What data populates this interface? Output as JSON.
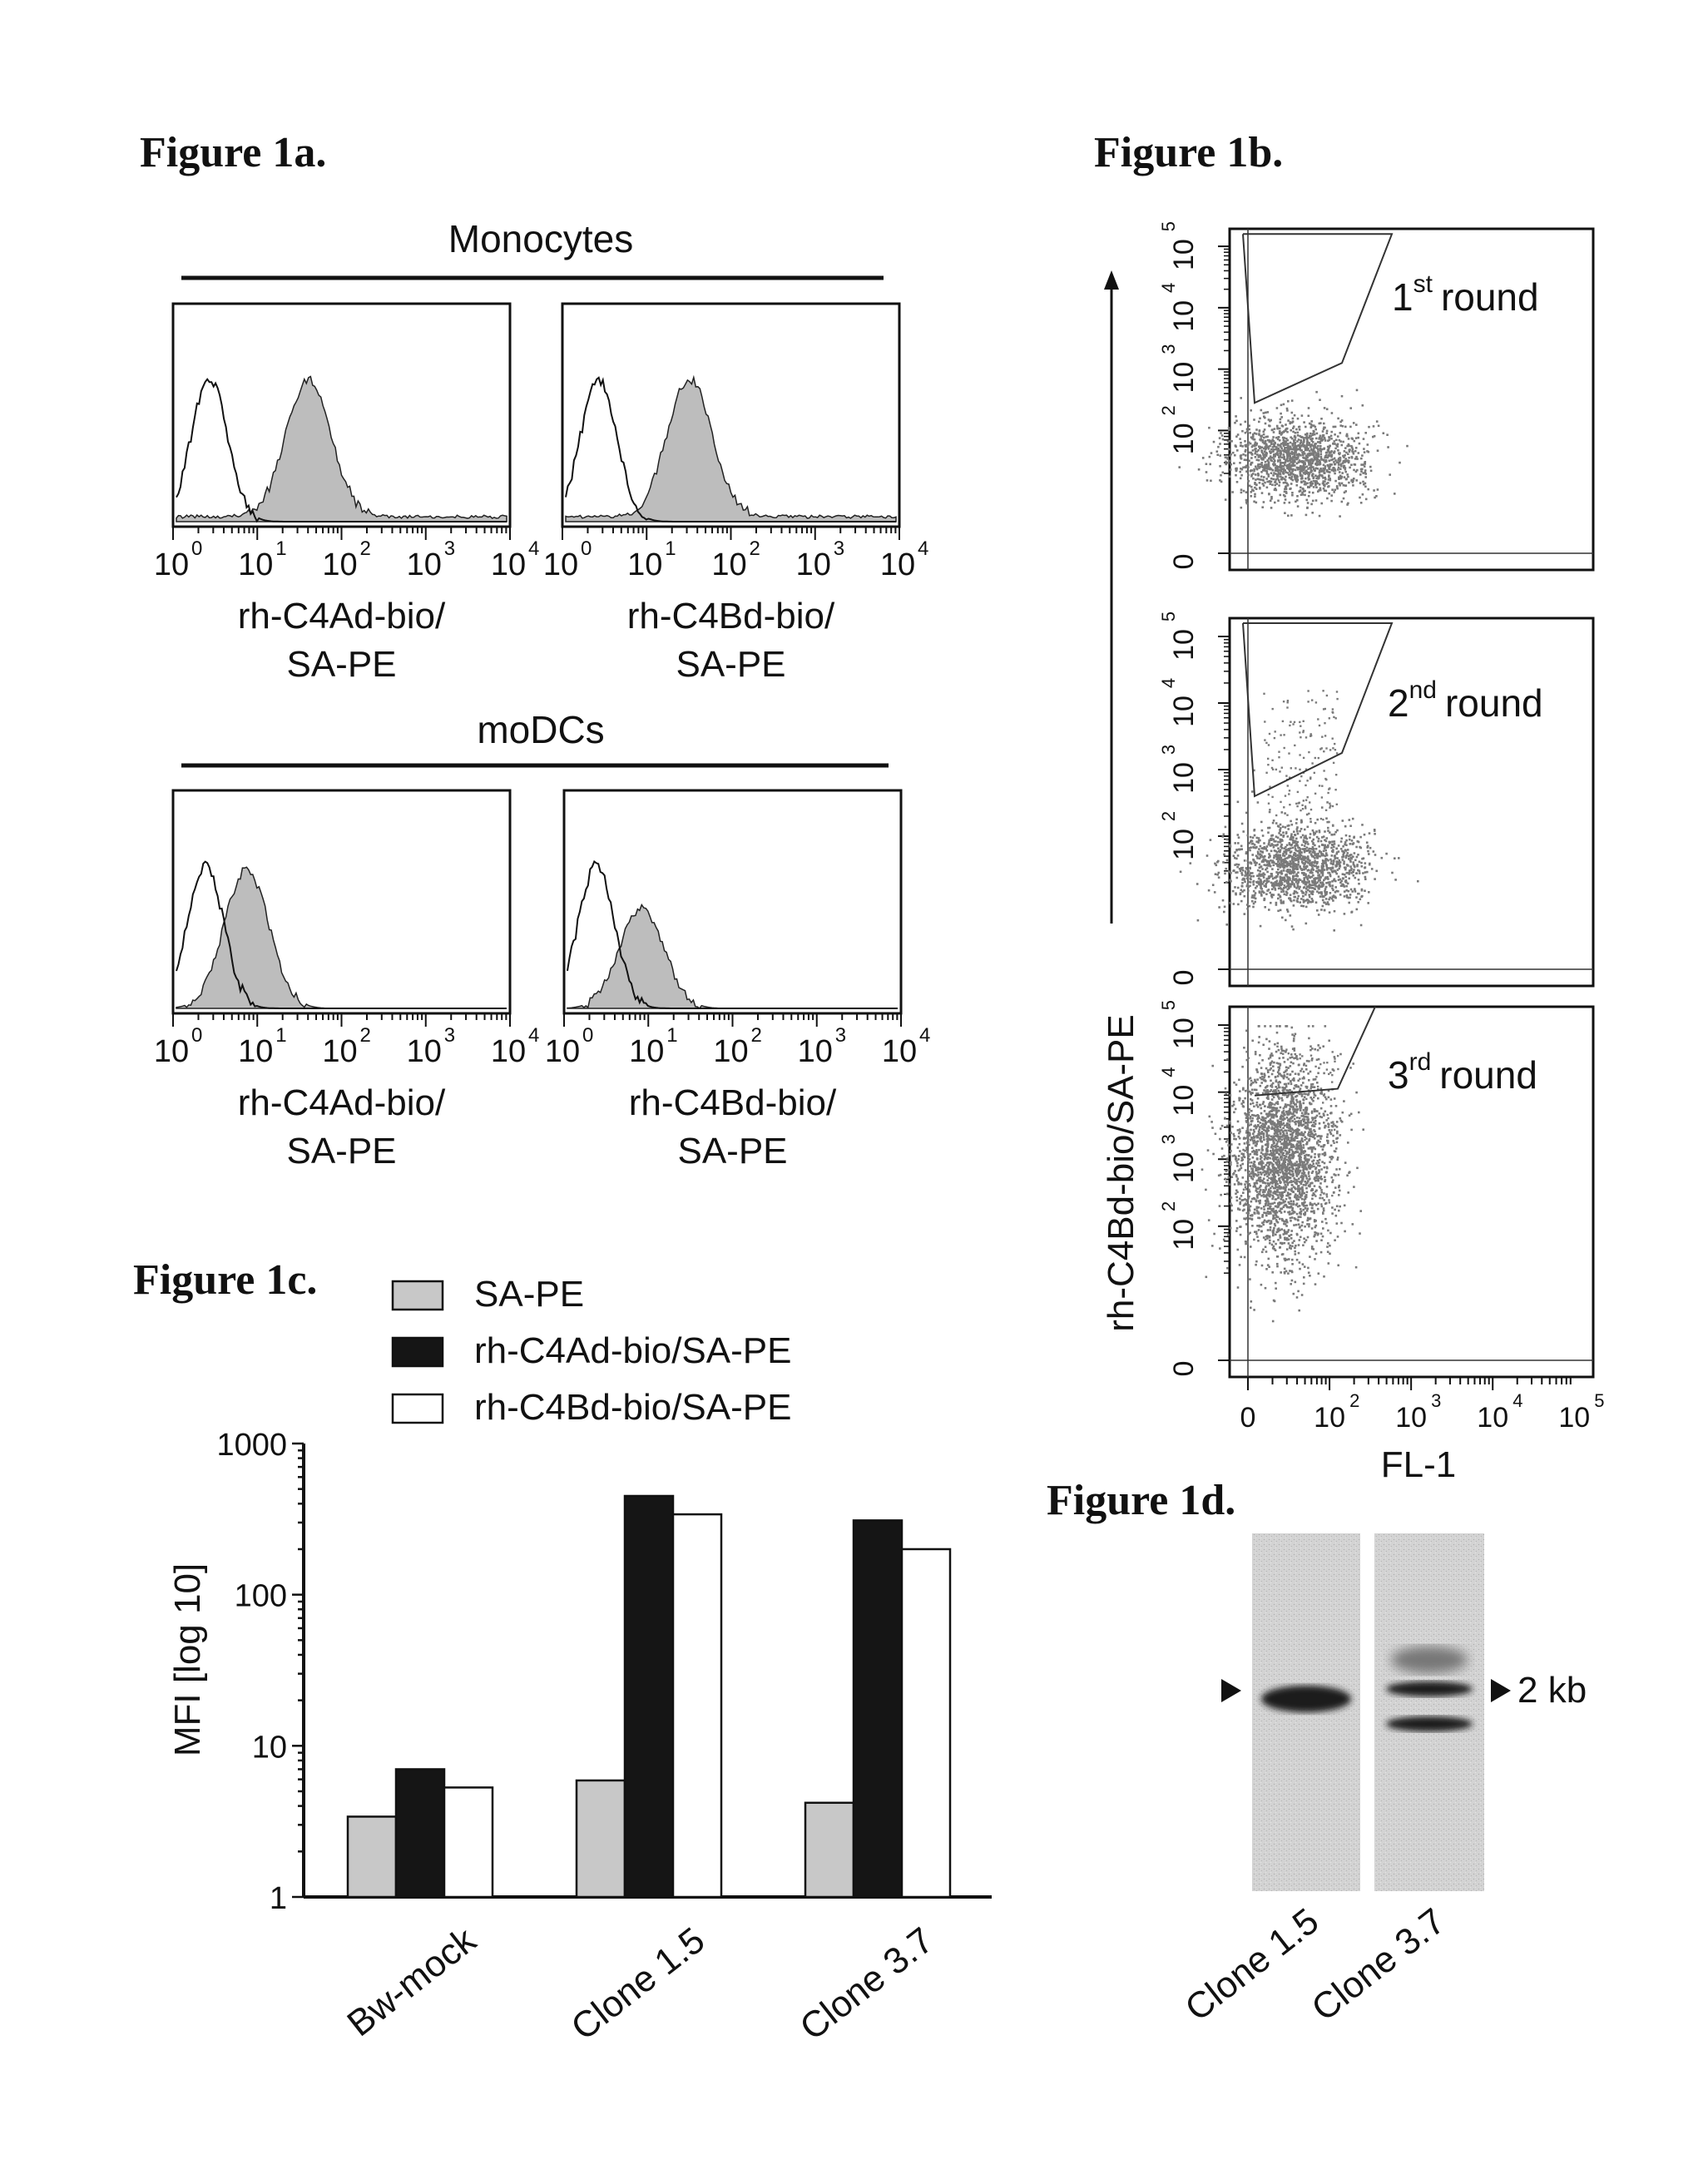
{
  "figure_titles": {
    "a": "Figure 1a.",
    "b": "Figure 1b.",
    "c": "Figure 1c.",
    "d": "Figure 1d."
  },
  "fig1a": {
    "group_top": "Monocytes",
    "group_bottom": "moDCs",
    "tick_labels": [
      "10",
      "10",
      "10",
      "10",
      "10"
    ],
    "tick_exponents": [
      "0",
      "1",
      "2",
      "3",
      "4"
    ],
    "panels": [
      {
        "xlabel_line1": "rh-C4Ad-bio/",
        "xlabel_line2": "SA-PE",
        "stained_peak_decade": 1.6,
        "control_peak_decade": 0.4
      },
      {
        "xlabel_line1": "rh-C4Bd-bio/",
        "xlabel_line2": "SA-PE",
        "stained_peak_decade": 1.5,
        "control_peak_decade": 0.4
      },
      {
        "xlabel_line1": "rh-C4Ad-bio/",
        "xlabel_line2": "SA-PE",
        "stained_peak_decade": 0.85,
        "control_peak_decade": 0.35
      },
      {
        "xlabel_line1": "rh-C4Bd-bio/",
        "xlabel_line2": "SA-PE",
        "stained_peak_decade": 0.9,
        "control_peak_decade": 0.35
      }
    ],
    "fill_color": "#bdbdbd"
  },
  "fig1b": {
    "ylabel": "rh-C4Bd-bio/SA-PE",
    "xlabel": "FL-1",
    "ytick_bases": [
      "0",
      "10",
      "10",
      "10",
      "10"
    ],
    "ytick_exponents": [
      "",
      "2",
      "3",
      "4",
      "5"
    ],
    "xtick_bases": [
      "0",
      "10",
      "10",
      "10",
      "10"
    ],
    "xtick_exponents": [
      "",
      "2",
      "3",
      "4",
      "5"
    ],
    "rounds": [
      {
        "label_base": "1",
        "label_sup": "st",
        "label_rest": "round"
      },
      {
        "label_base": "2",
        "label_sup": "nd",
        "label_rest": "round"
      },
      {
        "label_base": "3",
        "label_sup": "rd",
        "label_rest": "round"
      }
    ],
    "dot_color": "#7a7a7a"
  },
  "chart_data": {
    "type": "bar",
    "title": "",
    "xlabel": "",
    "ylabel": "MFI [log 10]",
    "yscale": "log",
    "ylim": [
      1,
      1000
    ],
    "yticks": [
      "1",
      "10",
      "100",
      "1000"
    ],
    "categories": [
      "Bw-mock",
      "Clone 1.5",
      "Clone 3.7"
    ],
    "series": [
      {
        "name": "SA-PE",
        "values": [
          3.4,
          5.9,
          4.2
        ],
        "color": "#c8c8c8"
      },
      {
        "name": "rh-C4Ad-bio/SA-PE",
        "values": [
          7,
          450,
          310
        ],
        "color": "#151515"
      },
      {
        "name": "rh-C4Bd-bio/SA-PE",
        "values": [
          5.3,
          340,
          200
        ],
        "color": "#ffffff"
      }
    ],
    "legend_position": "top"
  },
  "fig1d": {
    "marker_label": "2 kb",
    "lanes": [
      "Clone 1.5",
      "Clone 3.7"
    ]
  }
}
